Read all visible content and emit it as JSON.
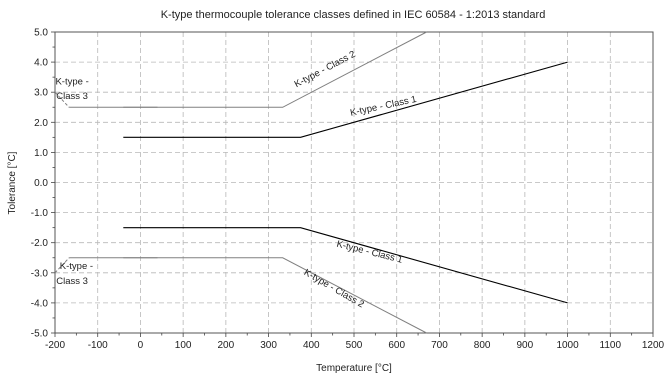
{
  "chart_data": {
    "type": "line",
    "title": "K-type thermocouple tolerance classes defined in IEC 60584 - 1:2013 standard",
    "xlabel": "Temperature [°C]",
    "ylabel": "Tolerance [°C]",
    "xlim": [
      -200,
      1200
    ],
    "ylim": [
      -5,
      5
    ],
    "xticks": [
      -200,
      -100,
      0,
      100,
      200,
      300,
      400,
      500,
      600,
      700,
      800,
      900,
      1000,
      1100,
      1200
    ],
    "xtick_labels": [
      "-200",
      "-100",
      "0",
      "100",
      "200",
      "300",
      "400",
      "500",
      "600",
      "700",
      "800",
      "900",
      "1000",
      "1100",
      "1200"
    ],
    "yticks": [
      -5,
      -4,
      -3,
      -2,
      -1,
      0,
      1,
      2,
      3,
      4,
      5
    ],
    "ytick_labels": [
      "-5.0",
      "-4.0",
      "-3.0",
      "-2.0",
      "-1.0",
      "0.0",
      "1.0",
      "2.0",
      "3.0",
      "4.0",
      "5.0"
    ],
    "grid": true,
    "series": [
      {
        "name": "K-type - Class 1",
        "color": "#000000",
        "x": [
          -40,
          375,
          1000
        ],
        "y": [
          1.5,
          1.5,
          4.0
        ]
      },
      {
        "name": "K-type - Class 1",
        "color": "#000000",
        "x": [
          -40,
          375,
          1000
        ],
        "y": [
          -1.5,
          -1.5,
          -4.0
        ]
      },
      {
        "name": "K-type - Class 2",
        "color": "#808080",
        "x": [
          -40,
          333,
          670
        ],
        "y": [
          2.5,
          2.5,
          5.0
        ]
      },
      {
        "name": "K-type - Class 2",
        "color": "#808080",
        "x": [
          -40,
          333,
          670
        ],
        "y": [
          -2.5,
          -2.5,
          -5.0
        ]
      },
      {
        "name": "K-type - Class 3",
        "color": "#808080",
        "dashed": true,
        "x": [
          -200,
          -167
        ],
        "y": [
          3.0,
          2.5
        ]
      },
      {
        "name": "K-type - Class 3",
        "color": "#808080",
        "x": [
          -167,
          40
        ],
        "y": [
          2.5,
          2.5
        ]
      },
      {
        "name": "K-type - Class 3",
        "color": "#808080",
        "dashed": true,
        "x": [
          -200,
          -167
        ],
        "y": [
          -3.0,
          -2.5
        ]
      },
      {
        "name": "K-type - Class 3",
        "color": "#808080",
        "x": [
          -167,
          40
        ],
        "y": [
          -2.5,
          -2.5
        ]
      }
    ],
    "annotations": [
      {
        "id": "class2-upper",
        "text": "K-type - Class 2",
        "x": 435,
        "y": 3.68,
        "angle": -28
      },
      {
        "id": "class1-upper",
        "text": "K-type - Class 1",
        "x": 570,
        "y": 2.45,
        "angle": -12
      },
      {
        "id": "class3-upper-l1",
        "text": "K-type -",
        "x": -160,
        "y": 3.25,
        "angle": 0
      },
      {
        "id": "class3-upper-l2",
        "text": "Class 3",
        "x": -160,
        "y": 2.78,
        "angle": 0
      },
      {
        "id": "class1-lower",
        "text": "K-type - Class 1",
        "x": 535,
        "y": -2.4,
        "angle": 14
      },
      {
        "id": "class2-lower",
        "text": "K-type - Class 2",
        "x": 450,
        "y": -3.6,
        "angle": 30
      },
      {
        "id": "class3-lower-l1",
        "text": "K-type -",
        "x": -150,
        "y": -2.88,
        "angle": 0
      },
      {
        "id": "class3-lower-l2",
        "text": "Class 3",
        "x": -160,
        "y": -3.38,
        "angle": 0
      }
    ]
  }
}
